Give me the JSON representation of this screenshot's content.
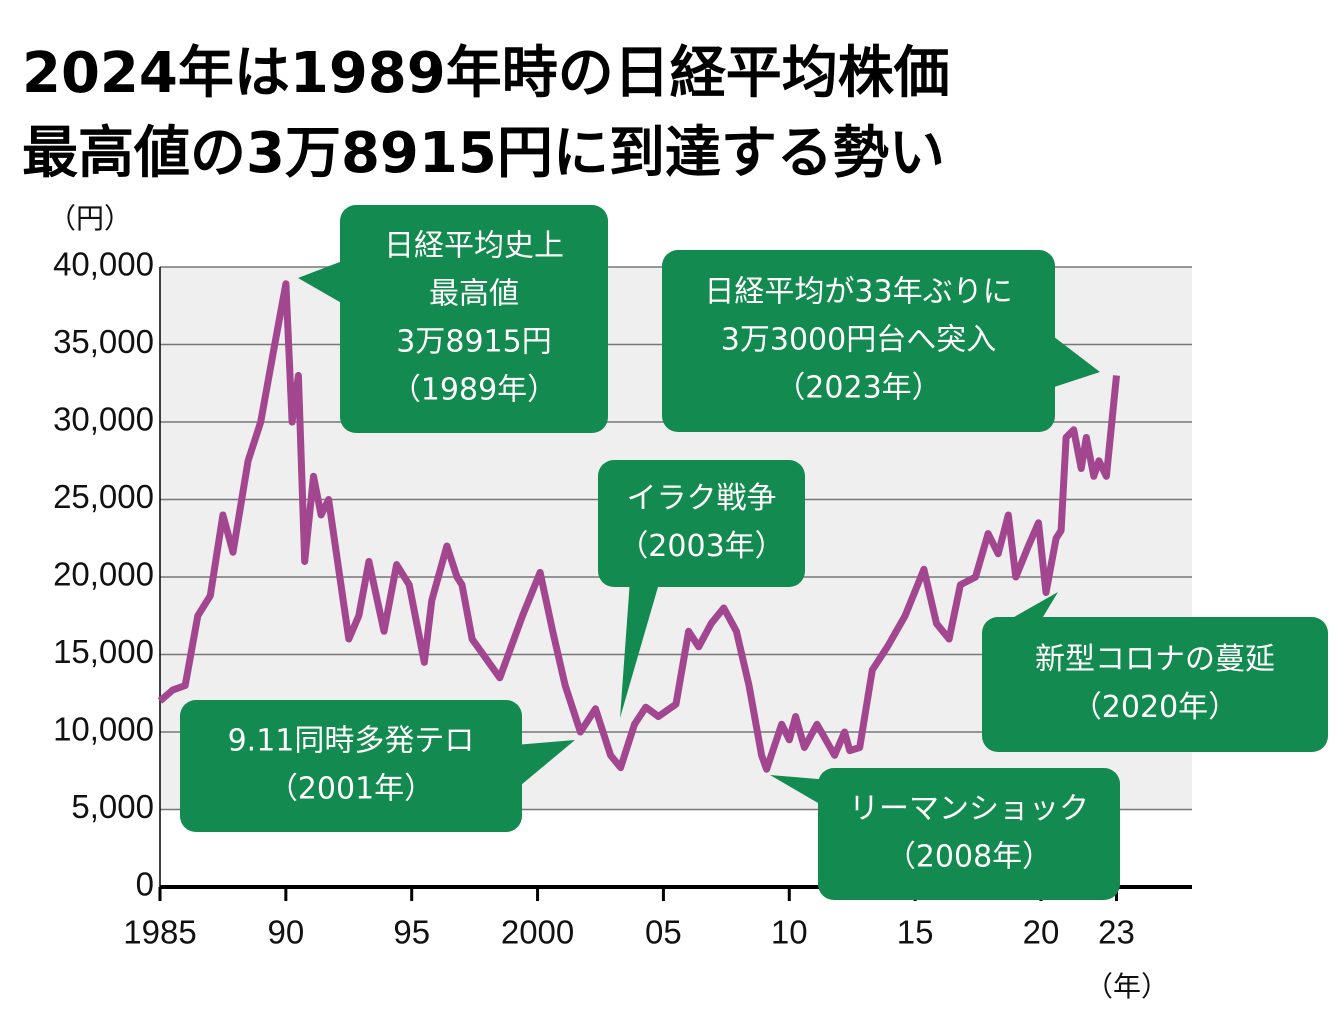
{
  "chart_data": {
    "type": "line",
    "title": [
      "2024年は1989年時の日経平均株価",
      "最高値の3万8915円に到達する勢い"
    ],
    "y_unit": "（円）",
    "x_unit": "（年）",
    "xlim": [
      1985,
      2026
    ],
    "ylim": [
      0,
      40000
    ],
    "xticks": [
      {
        "value": 1985,
        "label": "1985"
      },
      {
        "value": 1990,
        "label": "90"
      },
      {
        "value": 1995,
        "label": "95"
      },
      {
        "value": 2000,
        "label": "2000"
      },
      {
        "value": 2005,
        "label": "05"
      },
      {
        "value": 2010,
        "label": "10"
      },
      {
        "value": 2015,
        "label": "15"
      },
      {
        "value": 2020,
        "label": "20"
      },
      {
        "value": 2023,
        "label": "23"
      }
    ],
    "yticks": [
      0,
      {
        "value": 5000,
        "label": "5,000"
      },
      {
        "value": 10000,
        "label": "10,000"
      },
      {
        "value": 15000,
        "label": "15,000"
      },
      {
        "value": 20000,
        "label": "20,000"
      },
      {
        "value": 25000,
        "label": "25,000"
      },
      {
        "value": 30000,
        "label": "30,000"
      },
      {
        "value": 35000,
        "label": "35,000"
      },
      {
        "value": 40000,
        "label": "40,000"
      }
    ],
    "grid": true,
    "series": [
      {
        "name": "日経平均株価",
        "color": "#a2478f",
        "x": [
          1985.0,
          1985.5,
          1986.0,
          1986.5,
          1987.0,
          1987.5,
          1987.9,
          1988.5,
          1989.0,
          1989.5,
          1990.0,
          1990.25,
          1990.5,
          1990.75,
          1991.1,
          1991.4,
          1991.7,
          1992.5,
          1992.9,
          1993.3,
          1993.9,
          1994.4,
          1994.9,
          1995.5,
          1995.8,
          1996.4,
          1996.8,
          1997.0,
          1997.4,
          1998.5,
          1999.4,
          2000.1,
          2000.6,
          2001.1,
          2001.7,
          2002.3,
          2002.9,
          2003.3,
          2003.85,
          2004.3,
          2004.8,
          2005.5,
          2006.0,
          2006.4,
          2006.9,
          2007.4,
          2007.9,
          2008.4,
          2008.9,
          2009.1,
          2009.7,
          2010.0,
          2010.25,
          2010.6,
          2011.1,
          2011.8,
          2012.2,
          2012.4,
          2012.8,
          2013.3,
          2013.9,
          2014.6,
          2015.35,
          2015.85,
          2016.35,
          2016.8,
          2017.4,
          2017.9,
          2018.3,
          2018.7,
          2019.0,
          2019.5,
          2019.9,
          2020.2,
          2020.6,
          2020.8,
          2021.0,
          2021.3,
          2021.6,
          2021.8,
          2022.1,
          2022.3,
          2022.6,
          2023.0
        ],
        "values": [
          12000,
          12700,
          13000,
          17500,
          18800,
          24000,
          21600,
          27500,
          30000,
          34500,
          38915,
          30000,
          33000,
          21000,
          26500,
          24000,
          25000,
          16000,
          17500,
          21000,
          16500,
          20800,
          19500,
          14500,
          18500,
          22000,
          20000,
          19500,
          16000,
          13500,
          17500,
          20300,
          16500,
          13000,
          10000,
          11500,
          8500,
          7700,
          10500,
          11600,
          11000,
          11800,
          16500,
          15500,
          17000,
          18000,
          16500,
          13000,
          8500,
          7600,
          10500,
          9500,
          11000,
          9000,
          10500,
          8500,
          10000,
          8800,
          9000,
          14000,
          15500,
          17500,
          20500,
          17000,
          16000,
          19500,
          20000,
          22800,
          21500,
          24000,
          20000,
          22000,
          23500,
          19000,
          22500,
          23000,
          29000,
          29500,
          27000,
          29000,
          26500,
          27500,
          26500,
          33000
        ]
      }
    ],
    "annotations": [
      [
        "日経平均史上",
        "最高値",
        "3万8915円",
        "（1989年）"
      ],
      [
        "日経平均が33年ぶりに",
        "3万3000円台へ突入",
        "（2023年）"
      ],
      [
        "イラク戦争",
        "（2003年）"
      ],
      [
        "9.11同時多発テロ",
        "（2001年）"
      ],
      [
        "新型コロナの蔓延",
        "（2020年）"
      ],
      [
        "リーマンショック",
        "（2008年）"
      ]
    ]
  }
}
